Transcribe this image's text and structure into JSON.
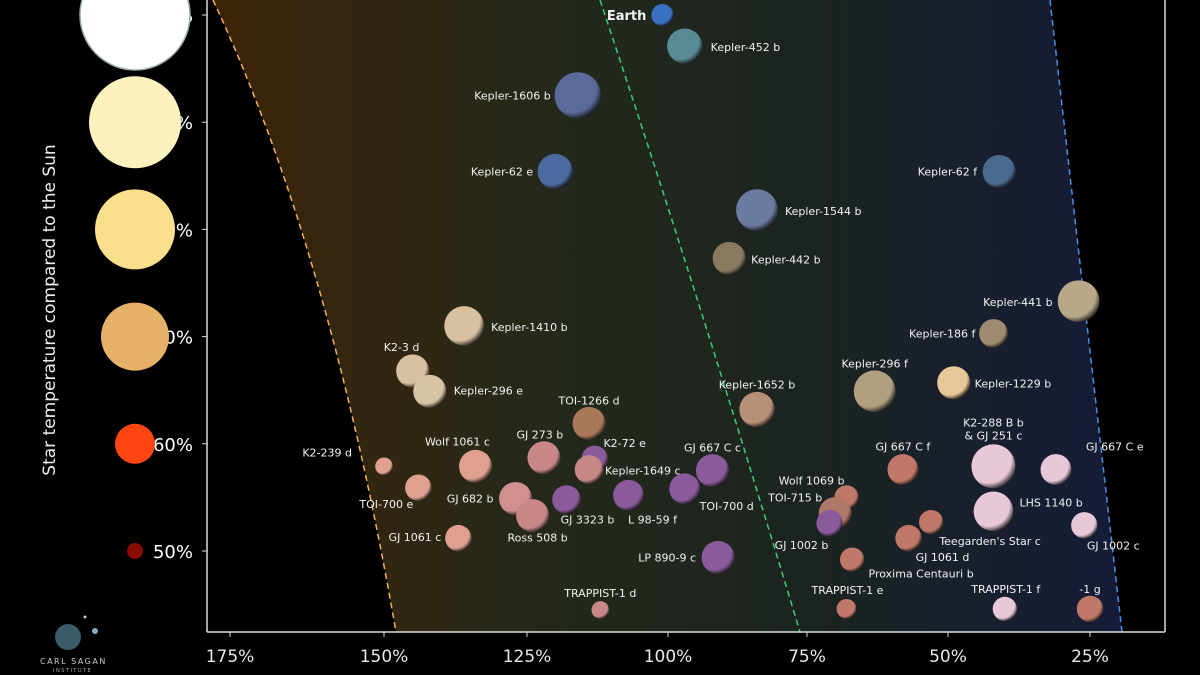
{
  "chart_data": {
    "type": "scatter",
    "title": "",
    "xlabel": "",
    "ylabel": "Star temperature compared to the Sun",
    "x_ticks": [
      "175%",
      "150%",
      "125%",
      "100%",
      "75%",
      "50%",
      "25%"
    ],
    "x_tick_values": [
      175,
      150,
      125,
      100,
      75,
      50,
      25
    ],
    "x_reversed": true,
    "y_ticks": [
      "100%",
      "90%",
      "80%",
      "70%",
      "60%",
      "50%"
    ],
    "y_tick_values": [
      100,
      90,
      80,
      70,
      60,
      50
    ],
    "star_colors": [
      "#ffffff",
      "#fdf2bd",
      "#fbdf8c",
      "#e6b26a",
      "#ff4512",
      "#8a0c00"
    ],
    "zone_colors": {
      "inner": "#f0b060",
      "earth": "#3ccf7a",
      "outer": "#4a90e0"
    },
    "grid": false,
    "legend": "left",
    "points": [
      {
        "name": "Earth",
        "x": 101,
        "y": 100,
        "size": 1.0,
        "color": "#3a70c0",
        "bold": true
      },
      {
        "name": "Kepler-452 b",
        "x": 97,
        "y": 97.1,
        "size": 1.6,
        "color": "#5a8a98"
      },
      {
        "name": "Kepler-1606 b",
        "x": 116,
        "y": 92.5,
        "size": 2.1,
        "color": "#5a6a9a"
      },
      {
        "name": "Kepler-62 e",
        "x": 120,
        "y": 85.4,
        "size": 1.6,
        "color": "#4a6aa0"
      },
      {
        "name": "Kepler-62 f",
        "x": 41,
        "y": 85.4,
        "size": 1.5,
        "color": "#4a6a90"
      },
      {
        "name": "Kepler-1544 b",
        "x": 84,
        "y": 81.8,
        "size": 1.9,
        "color": "#6a7aa0"
      },
      {
        "name": "Kepler-442 b",
        "x": 89,
        "y": 77.3,
        "size": 1.5,
        "color": "#8a7a60"
      },
      {
        "name": "Kepler-441 b",
        "x": 27,
        "y": 73.3,
        "size": 1.9,
        "color": "#b8a888"
      },
      {
        "name": "Kepler-1410 b",
        "x": 136,
        "y": 71.0,
        "size": 1.8,
        "color": "#d8c0a0"
      },
      {
        "name": "Kepler-186 f",
        "x": 42,
        "y": 70.3,
        "size": 1.3,
        "color": "#a08a70"
      },
      {
        "name": "K2-3 d",
        "x": 145,
        "y": 66.8,
        "size": 1.5,
        "color": "#d8c0a0"
      },
      {
        "name": "Kepler-296 e",
        "x": 142,
        "y": 64.9,
        "size": 1.5,
        "color": "#d8c4a4"
      },
      {
        "name": "Kepler-296 f",
        "x": 63,
        "y": 64.9,
        "size": 1.9,
        "color": "#b0a080"
      },
      {
        "name": "Kepler-1229 b",
        "x": 49,
        "y": 65.7,
        "size": 1.5,
        "color": "#e8c898"
      },
      {
        "name": "Kepler-1652 b",
        "x": 84,
        "y": 63.2,
        "size": 1.6,
        "color": "#b89078"
      },
      {
        "name": "TOI-1266 d",
        "x": 114,
        "y": 61.9,
        "size": 1.5,
        "color": "#a87858"
      },
      {
        "name": "K2-288 B b",
        "name2": "& GJ 251 c",
        "x": 42,
        "y": 57.9,
        "size": 2.0,
        "color": "#e8c8d8"
      },
      {
        "name": "GJ 667 C f",
        "x": 58,
        "y": 57.6,
        "size": 1.4,
        "color": "#c07868"
      },
      {
        "name": "GJ 667 C e",
        "x": 31,
        "y": 57.6,
        "size": 1.4,
        "color": "#e8c8d8"
      },
      {
        "name": "K2-239 d",
        "x": 150,
        "y": 57.9,
        "size": 0.8,
        "color": "#e0a090"
      },
      {
        "name": "Wolf 1061 c",
        "x": 134,
        "y": 57.9,
        "size": 1.5,
        "color": "#e0a090"
      },
      {
        "name": "GJ 273 b",
        "x": 122,
        "y": 58.7,
        "size": 1.5,
        "color": "#c88888"
      },
      {
        "name": "K2-72 e",
        "x": 113,
        "y": 58.6,
        "size": 1.2,
        "color": "#8a5a9a"
      },
      {
        "name": "Kepler-1649 c",
        "x": 114,
        "y": 57.6,
        "size": 1.3,
        "color": "#c88888"
      },
      {
        "name": "GJ 667 C c",
        "x": 92,
        "y": 57.5,
        "size": 1.5,
        "color": "#8a5a9a"
      },
      {
        "name": "TOI-700 e",
        "x": 144,
        "y": 55.9,
        "size": 1.2,
        "color": "#e0a090"
      },
      {
        "name": "GJ 682 b",
        "x": 127,
        "y": 54.9,
        "size": 1.5,
        "color": "#d09090"
      },
      {
        "name": "Ross 508 b",
        "x": 124,
        "y": 53.3,
        "size": 1.5,
        "color": "#c88888"
      },
      {
        "name": "GJ 3323 b",
        "x": 118,
        "y": 54.8,
        "size": 1.3,
        "color": "#8a5a9a"
      },
      {
        "name": "L 98-59 f",
        "x": 107,
        "y": 55.2,
        "size": 1.4,
        "color": "#8a5a9a"
      },
      {
        "name": "TOI-700 d",
        "x": 97,
        "y": 55.8,
        "size": 1.4,
        "color": "#8a5a9a"
      },
      {
        "name": "Wolf 1069 b",
        "x": 68,
        "y": 55.0,
        "size": 1.1,
        "color": "#c07868"
      },
      {
        "name": "TOI-715 b",
        "x": 70,
        "y": 53.5,
        "size": 1.5,
        "color": "#b07868"
      },
      {
        "name": "GJ 1002 b",
        "x": 71,
        "y": 52.6,
        "size": 1.2,
        "color": "#8a5a9a"
      },
      {
        "name": "LHS 1140 b",
        "x": 42,
        "y": 53.7,
        "size": 1.8,
        "color": "#e8c8d8"
      },
      {
        "name": "Teegarden's Star c",
        "x": 53,
        "y": 52.7,
        "size": 1.1,
        "color": "#c07868"
      },
      {
        "name": "GJ 1061 d",
        "x": 57,
        "y": 51.2,
        "size": 1.2,
        "color": "#c07868"
      },
      {
        "name": "GJ 1002 c",
        "x": 26,
        "y": 52.4,
        "size": 1.2,
        "color": "#e8c8d8"
      },
      {
        "name": "GJ 1061 c",
        "x": 137,
        "y": 51.2,
        "size": 1.2,
        "color": "#e0a090"
      },
      {
        "name": "LP 890-9 c",
        "x": 91,
        "y": 49.4,
        "size": 1.5,
        "color": "#8a5a9a"
      },
      {
        "name": "Proxima Centauri b",
        "x": 67,
        "y": 49.2,
        "size": 1.1,
        "color": "#c07868"
      },
      {
        "name": "TRAPPIST-1 d",
        "x": 112,
        "y": 44.5,
        "size": 0.8,
        "color": "#c88888"
      },
      {
        "name": "TRAPPIST-1 e",
        "x": 68,
        "y": 44.6,
        "size": 0.9,
        "color": "#c07868"
      },
      {
        "name": "TRAPPIST-1 f",
        "x": 40,
        "y": 44.6,
        "size": 1.1,
        "color": "#e8c8d8"
      },
      {
        "name": "-1 g",
        "x": 25,
        "y": 44.6,
        "size": 1.2,
        "color": "#c07868"
      }
    ]
  },
  "logo": {
    "line1": "CARL SAGAN",
    "line2": "INSTITUTE"
  }
}
